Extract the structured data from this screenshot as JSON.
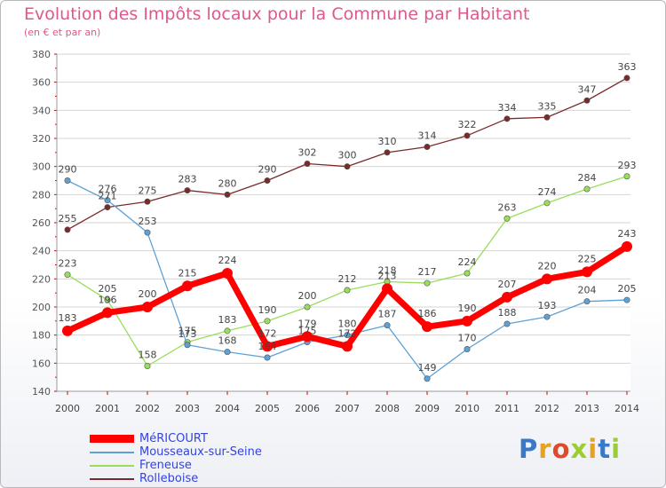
{
  "title": "Evolution des Impôts locaux pour la Commune par Habitant",
  "subtitle": "(en € et par an)",
  "logo": "Proxiti",
  "chart_data": {
    "type": "line",
    "title": "Evolution des Impôts locaux pour la Commune par Habitant",
    "ylabel": "(en € et par an)",
    "xlabel": "",
    "categories": [
      "2000",
      "2001",
      "2002",
      "2003",
      "2004",
      "2005",
      "2006",
      "2007",
      "2008",
      "2009",
      "2010",
      "2011",
      "2012",
      "2013",
      "2014"
    ],
    "ylim": [
      140,
      380
    ],
    "yticks": [
      140,
      160,
      180,
      200,
      220,
      240,
      260,
      280,
      300,
      320,
      340,
      360,
      380
    ],
    "grid": true,
    "legend": "bottom-left",
    "series": [
      {
        "name": "MéRICOURT",
        "color": "#ff0000",
        "values": [
          183,
          196,
          200,
          215,
          224,
          172,
          179,
          172,
          213,
          186,
          190,
          207,
          220,
          225,
          243
        ]
      },
      {
        "name": "Mousseaux-sur-Seine",
        "color": "#5da1d5",
        "values": [
          290,
          276,
          253,
          173,
          168,
          164,
          175,
          180,
          187,
          149,
          170,
          188,
          193,
          204,
          205
        ]
      },
      {
        "name": "Freneuse",
        "color": "#99de5b",
        "values": [
          223,
          205,
          158,
          175,
          183,
          190,
          200,
          212,
          218,
          217,
          224,
          263,
          274,
          284,
          293
        ]
      },
      {
        "name": "Rolleboise",
        "color": "#7b2a2a",
        "values": [
          255,
          271,
          275,
          283,
          280,
          290,
          302,
          300,
          310,
          314,
          322,
          334,
          335,
          347,
          363
        ]
      }
    ]
  }
}
